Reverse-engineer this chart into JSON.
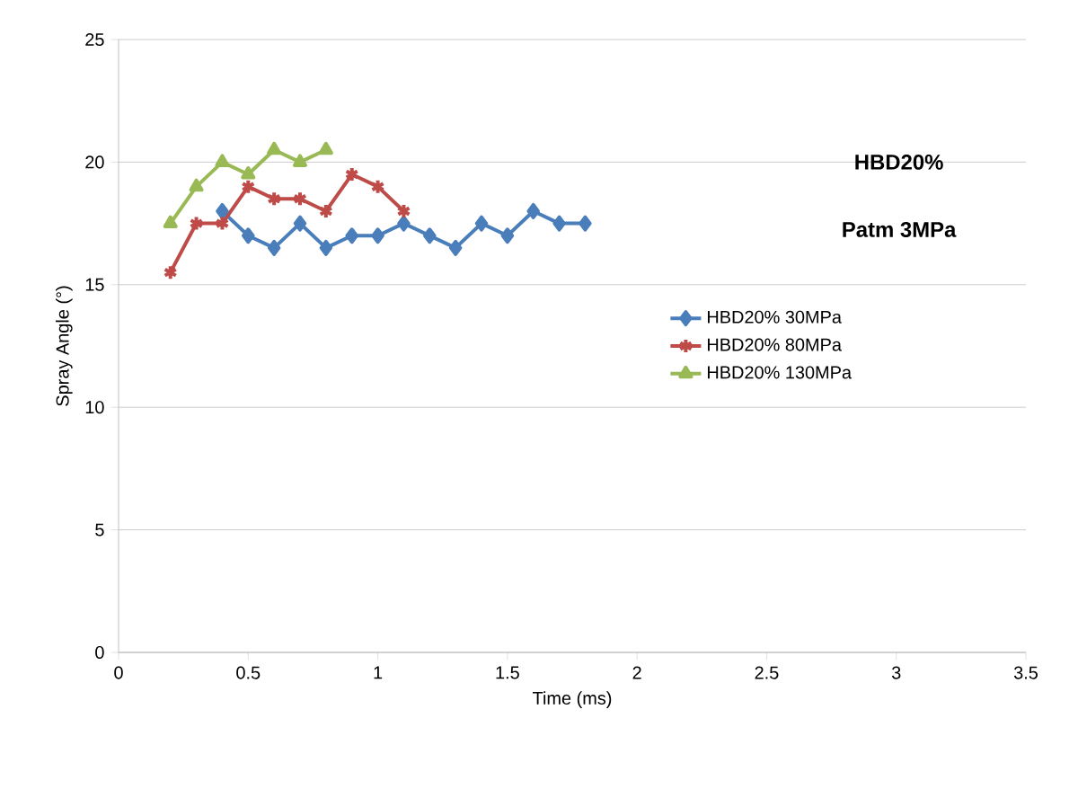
{
  "chart_data": {
    "type": "line",
    "xlabel": "Time (ms)",
    "ylabel": "Spray Angle (°)",
    "annotations": [
      "HBD20%",
      "Patm 3MPa"
    ],
    "series": [
      {
        "name": "HBD20% 30MPa",
        "color": "#4a7ebb",
        "marker": "diamond",
        "x": [
          0.4,
          0.5,
          0.6,
          0.7,
          0.8,
          0.9,
          1.0,
          1.1,
          1.2,
          1.3,
          1.4,
          1.5,
          1.6,
          1.7,
          1.8
        ],
        "values": [
          18,
          17,
          16.5,
          17.5,
          16.5,
          17,
          17,
          17.5,
          17,
          16.5,
          17.5,
          17,
          18,
          17.5,
          17.5
        ]
      },
      {
        "name": "HBD20% 80MPa",
        "color": "#be4b48",
        "marker": "cross",
        "x": [
          0.2,
          0.3,
          0.4,
          0.5,
          0.6,
          0.7,
          0.8,
          0.9,
          1.0,
          1.1
        ],
        "values": [
          15.5,
          17.5,
          17.5,
          19,
          18.5,
          18.5,
          18,
          19.5,
          19,
          18
        ]
      },
      {
        "name": "HBD20% 130MPa",
        "color": "#98b954",
        "marker": "triangle",
        "x": [
          0.2,
          0.3,
          0.4,
          0.5,
          0.6,
          0.7,
          0.8
        ],
        "values": [
          17.5,
          19,
          20,
          19.5,
          20.5,
          20,
          20.5
        ]
      }
    ],
    "xlim": [
      0,
      3.5
    ],
    "xticks": [
      0,
      0.5,
      1,
      1.5,
      2,
      2.5,
      3,
      3.5
    ],
    "ylim": [
      0,
      25
    ],
    "yticks": [
      0,
      5,
      10,
      15,
      20,
      25
    ],
    "grid": "y",
    "legend": "right",
    "line_style": "solid"
  }
}
